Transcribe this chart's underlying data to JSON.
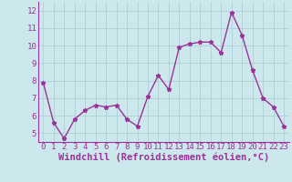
{
  "x": [
    0,
    1,
    2,
    3,
    4,
    5,
    6,
    7,
    8,
    9,
    10,
    11,
    12,
    13,
    14,
    15,
    16,
    17,
    18,
    19,
    20,
    21,
    22,
    23
  ],
  "y": [
    7.9,
    5.6,
    4.7,
    5.8,
    6.3,
    6.6,
    6.5,
    6.6,
    5.8,
    5.4,
    7.1,
    8.3,
    7.5,
    9.9,
    10.1,
    10.2,
    10.2,
    9.6,
    11.9,
    10.6,
    8.6,
    7.0,
    6.5,
    5.4
  ],
  "line_color": "#993399",
  "marker": "*",
  "marker_size": 3.5,
  "xlabel": "Windchill (Refroidissement éolien,°C)",
  "ylim": [
    4.5,
    12.5
  ],
  "xlim": [
    -0.5,
    23.5
  ],
  "yticks": [
    5,
    6,
    7,
    8,
    9,
    10,
    11,
    12
  ],
  "xticks": [
    0,
    1,
    2,
    3,
    4,
    5,
    6,
    7,
    8,
    9,
    10,
    11,
    12,
    13,
    14,
    15,
    16,
    17,
    18,
    19,
    20,
    21,
    22,
    23
  ],
  "bg_color": "#cde8ec",
  "grid_color": "#b0d4d8",
  "tick_fontsize": 6.5,
  "xlabel_fontsize": 7.5,
  "line_width": 1.0,
  "border_color": "#993399"
}
